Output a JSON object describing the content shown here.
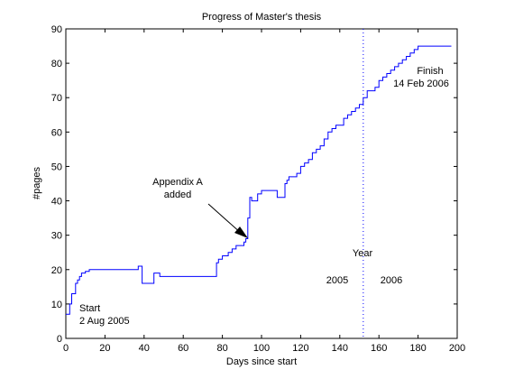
{
  "chart_data": {
    "type": "line",
    "title": "Progress of Master's thesis",
    "xlabel": "Days since start",
    "ylabel": "#pages",
    "xlim": [
      0,
      200
    ],
    "ylim": [
      0,
      90
    ],
    "xticks": [
      0,
      20,
      40,
      60,
      80,
      100,
      120,
      140,
      160,
      180,
      200
    ],
    "yticks": [
      0,
      10,
      20,
      30,
      40,
      50,
      60,
      70,
      80,
      90
    ],
    "grid": false,
    "series": [
      {
        "color": "#0000ff",
        "x": [
          0,
          1,
          2,
          3,
          4,
          5,
          6,
          7,
          8,
          9,
          10,
          12,
          14,
          20,
          30,
          35,
          37,
          38,
          39,
          40,
          45,
          48,
          50,
          60,
          70,
          76,
          77,
          78,
          80,
          83,
          85,
          87,
          89,
          91,
          92,
          93,
          94,
          95,
          98,
          100,
          102,
          105,
          108,
          109,
          111,
          112,
          113,
          114,
          116,
          118,
          120,
          122,
          124,
          126,
          128,
          130,
          132,
          134,
          136,
          138,
          140,
          142,
          144,
          146,
          148,
          150,
          152,
          154,
          156,
          158,
          160,
          162,
          164,
          166,
          168,
          170,
          172,
          174,
          176,
          178,
          180,
          190,
          197
        ],
        "y": [
          7,
          7,
          10,
          13,
          13,
          16,
          17,
          18,
          19,
          19,
          19.5,
          20,
          20,
          20,
          20,
          20,
          21,
          21,
          16,
          16,
          19,
          18,
          18,
          18,
          18,
          18,
          22,
          23,
          24,
          25,
          26,
          27,
          27,
          28,
          29,
          35,
          41,
          40,
          42,
          43,
          43,
          43,
          41,
          41,
          41,
          45,
          46,
          47,
          47,
          48,
          50,
          51,
          52,
          54,
          55,
          56,
          58,
          60,
          61,
          62,
          62,
          64,
          65,
          66,
          67,
          68,
          70,
          72,
          72,
          73,
          75,
          76,
          77,
          78,
          79,
          80,
          81,
          82,
          83,
          84,
          85,
          85,
          85
        ]
      }
    ],
    "vline": {
      "x": 152,
      "color": "#0000ff",
      "style": "dotted"
    },
    "annotations": {
      "start_line1": "Start",
      "start_line2": "2 Aug 2005",
      "finish_line1": "Finish",
      "finish_line2": "14 Feb 2006",
      "appendix_line1": "Appendix A",
      "appendix_line2": "added",
      "year_label": "Year",
      "year_left": "2005",
      "year_right": "2006"
    }
  }
}
